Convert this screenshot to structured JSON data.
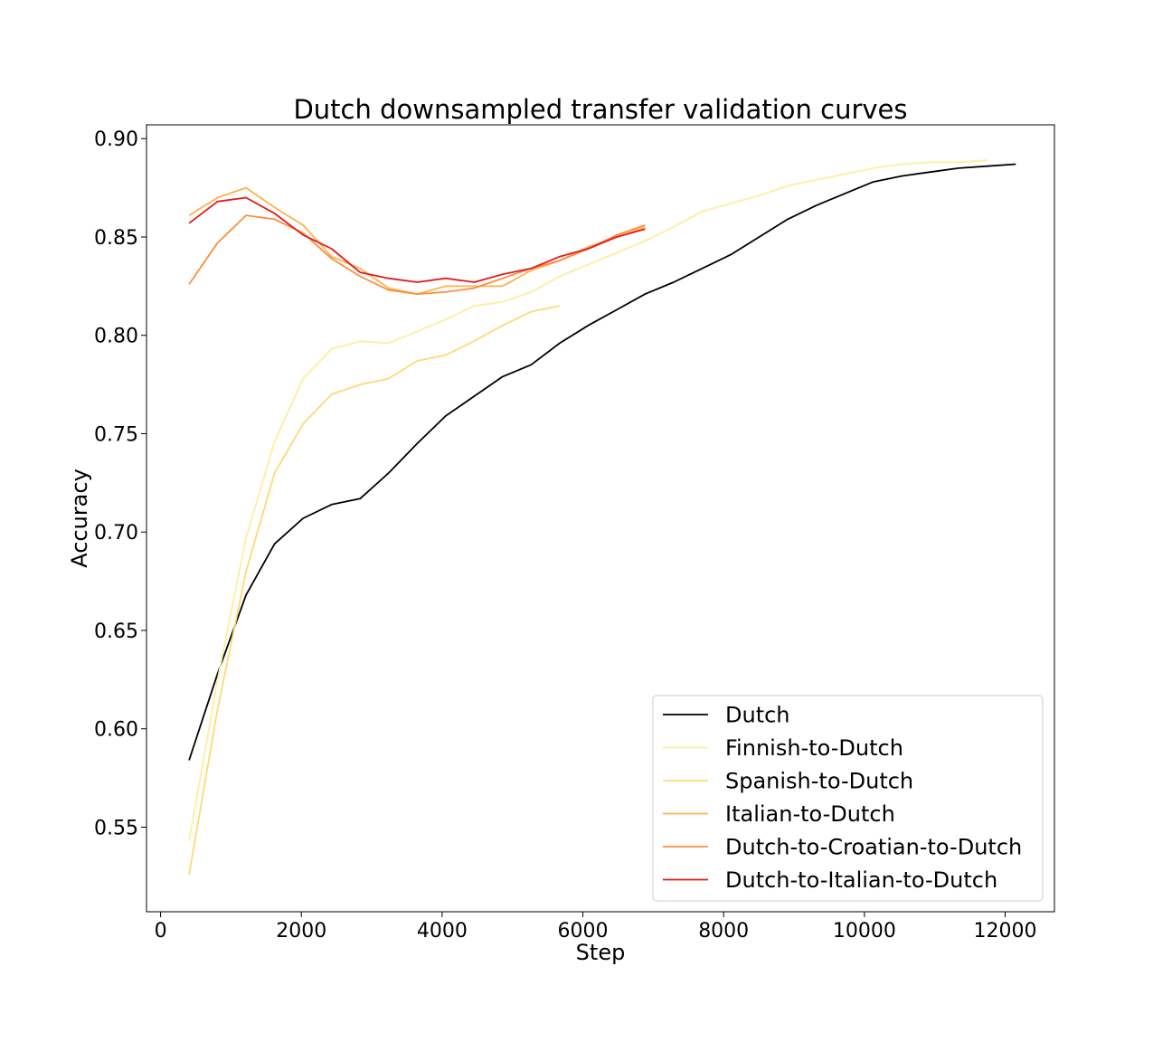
{
  "chart_data": {
    "type": "line",
    "title": "Dutch downsampled transfer validation curves",
    "xlabel": "Step",
    "ylabel": "Accuracy",
    "xlim": [
      -200,
      12700
    ],
    "ylim": [
      0.507,
      0.907
    ],
    "xticks": [
      0,
      2000,
      4000,
      6000,
      8000,
      10000,
      12000
    ],
    "yticks": [
      0.55,
      0.6,
      0.65,
      0.7,
      0.75,
      0.8,
      0.85,
      0.9
    ],
    "grid": false,
    "legend_position": "lower-right",
    "series": [
      {
        "name": "Dutch",
        "color": "#000000",
        "x": [
          405,
          810,
          1215,
          1620,
          2025,
          2430,
          2835,
          3240,
          3645,
          4050,
          4455,
          4860,
          5265,
          5670,
          6075,
          6480,
          6885,
          7290,
          7695,
          8100,
          8505,
          8910,
          9315,
          9720,
          10125,
          10530,
          10935,
          11340,
          11745,
          12150
        ],
        "y": [
          0.584,
          0.628,
          0.668,
          0.694,
          0.707,
          0.714,
          0.717,
          0.73,
          0.745,
          0.759,
          0.769,
          0.779,
          0.785,
          0.796,
          0.805,
          0.813,
          0.821,
          0.827,
          0.834,
          0.841,
          0.85,
          0.859,
          0.866,
          0.872,
          0.878,
          0.881,
          0.883,
          0.885,
          0.886,
          0.887
        ]
      },
      {
        "name": "Finnish-to-Dutch",
        "color": "#ffeda0",
        "x": [
          405,
          810,
          1215,
          1620,
          2025,
          2430,
          2835,
          3240,
          3645,
          4050,
          4455,
          4860,
          5265,
          5670,
          6075,
          6480,
          6885,
          7290,
          7695,
          8100,
          8505,
          8910,
          9315,
          9720,
          10125,
          10530,
          10935,
          11340,
          11745
        ],
        "y": [
          0.543,
          0.625,
          0.697,
          0.746,
          0.778,
          0.793,
          0.797,
          0.796,
          0.802,
          0.808,
          0.815,
          0.817,
          0.822,
          0.83,
          0.836,
          0.842,
          0.848,
          0.855,
          0.863,
          0.867,
          0.871,
          0.876,
          0.879,
          0.882,
          0.885,
          0.887,
          0.888,
          0.888,
          0.889
        ]
      },
      {
        "name": "Spanish-to-Dutch",
        "color": "#fed976",
        "x": [
          405,
          810,
          1215,
          1620,
          2025,
          2430,
          2835,
          3240,
          3645,
          4050,
          4455,
          4860,
          5265,
          5670
        ],
        "y": [
          0.526,
          0.61,
          0.68,
          0.73,
          0.755,
          0.77,
          0.775,
          0.778,
          0.787,
          0.79,
          0.797,
          0.805,
          0.812,
          0.815
        ]
      },
      {
        "name": "Italian-to-Dutch",
        "color": "#feb24c",
        "x": [
          405,
          810,
          1215,
          1620,
          2025,
          2430,
          2835,
          3240,
          3645,
          4050,
          4455,
          4860,
          5265,
          5670,
          6075,
          6480,
          6885
        ],
        "y": [
          0.861,
          0.87,
          0.875,
          0.865,
          0.856,
          0.84,
          0.834,
          0.824,
          0.821,
          0.825,
          0.825,
          0.825,
          0.833,
          0.838,
          0.845,
          0.85,
          0.855
        ]
      },
      {
        "name": "Dutch-to-Croatian-to-Dutch",
        "color": "#fd8d3c",
        "x": [
          405,
          810,
          1215,
          1620,
          2025,
          2430,
          2835,
          3240,
          3645,
          4050,
          4455,
          4860,
          5265,
          5670,
          6075,
          6480,
          6885
        ],
        "y": [
          0.826,
          0.847,
          0.861,
          0.859,
          0.852,
          0.839,
          0.83,
          0.823,
          0.821,
          0.822,
          0.824,
          0.829,
          0.834,
          0.838,
          0.844,
          0.851,
          0.856
        ]
      },
      {
        "name": "Dutch-to-Italian-to-Dutch",
        "color": "#e31a1c",
        "x": [
          405,
          810,
          1215,
          1620,
          2025,
          2430,
          2835,
          3240,
          3645,
          4050,
          4455,
          4860,
          5265,
          5670,
          6075,
          6480,
          6885
        ],
        "y": [
          0.857,
          0.868,
          0.87,
          0.862,
          0.851,
          0.844,
          0.832,
          0.829,
          0.827,
          0.829,
          0.827,
          0.831,
          0.834,
          0.84,
          0.844,
          0.85,
          0.854
        ]
      }
    ]
  }
}
